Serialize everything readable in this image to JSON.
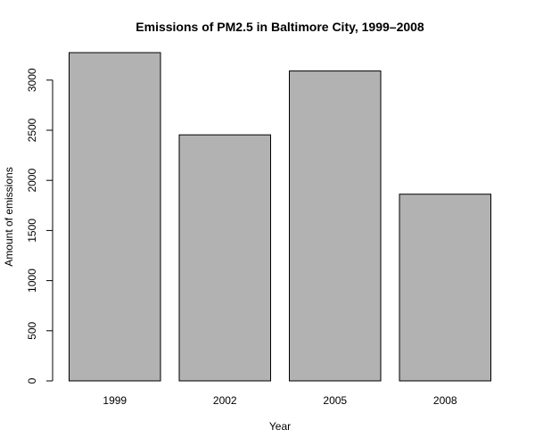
{
  "chart_data": {
    "type": "bar",
    "title": "Emissions of PM2.5 in Baltimore City, 1999–2008",
    "xlabel": "Year",
    "ylabel": "Amount of emissions",
    "categories": [
      "1999",
      "2002",
      "2005",
      "2008"
    ],
    "values": [
      3274,
      2454,
      3091,
      1862
    ],
    "ylim": [
      0,
      3274
    ],
    "yticks": [
      0,
      500,
      1000,
      1500,
      2000,
      2500,
      3000
    ],
    "grid": false,
    "legend": "none",
    "bar_color": "#b2b2b2",
    "bar_border_color": "#000000"
  }
}
